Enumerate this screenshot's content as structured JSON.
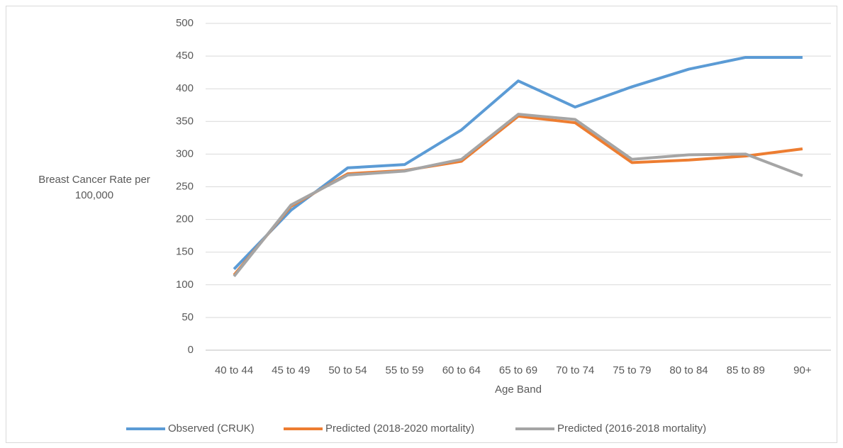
{
  "chart_data": {
    "type": "line",
    "x_label": "Age Band",
    "y_label": "Breast Cancer Rate per 100,000",
    "categories": [
      "40 to 44",
      "45 to 49",
      "50 to 54",
      "55 to 59",
      "60 to 64",
      "65 to 69",
      "70 to 74",
      "75 to 79",
      "80 to 84",
      "85 to 89",
      "90+"
    ],
    "series": [
      {
        "name": "Observed (CRUK)",
        "color": "#5b9bd5",
        "values": [
          124,
          214,
          279,
          284,
          337,
          412,
          372,
          403,
          430,
          448,
          448
        ]
      },
      {
        "name": "Predicted (2018-2020 mortality)",
        "color": "#ed7d31",
        "values": [
          115,
          220,
          270,
          275,
          289,
          358,
          348,
          287,
          291,
          297,
          308
        ]
      },
      {
        "name": "Predicted (2016-2018 mortality)",
        "color": "#a5a5a5",
        "values": [
          113,
          222,
          268,
          274,
          292,
          361,
          353,
          292,
          299,
          300,
          267
        ]
      }
    ],
    "ylim": [
      0,
      500
    ],
    "yticks": [
      0,
      50,
      100,
      150,
      200,
      250,
      300,
      350,
      400,
      450,
      500
    ],
    "grid": true,
    "legend": "bottom"
  }
}
